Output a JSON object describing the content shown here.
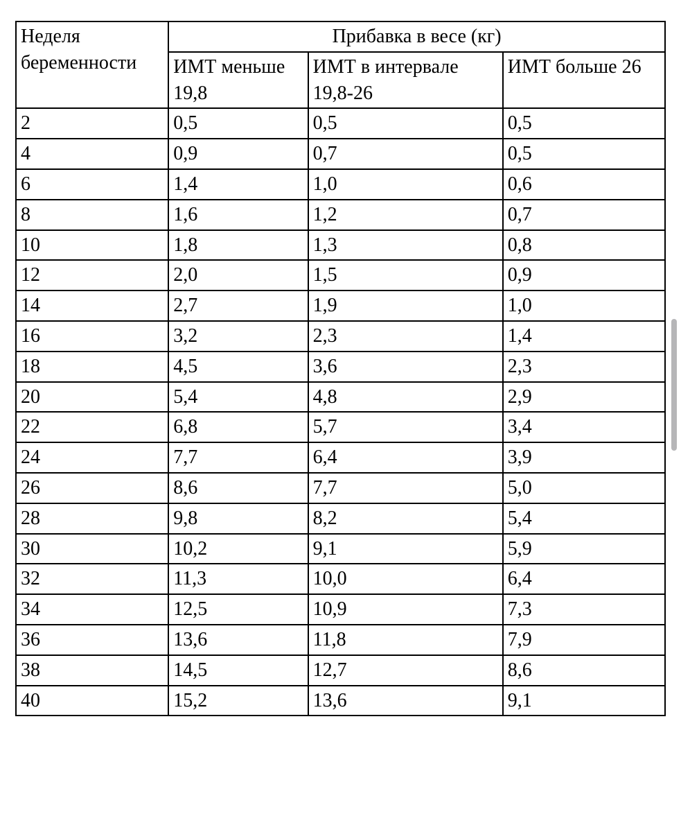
{
  "table": {
    "type": "table",
    "border_color": "#000000",
    "background_color": "#ffffff",
    "text_color": "#000000",
    "font_family": "Times New Roman",
    "font_size_pt": 21,
    "column_widths_pct": [
      23.5,
      21.5,
      30.0,
      25.0
    ],
    "header": {
      "rowhead": "Неделя беременности",
      "spanner": "Прибавка в весе (кг)",
      "subcols": [
        "ИМТ меньше 19,8",
        "ИМТ в интервале 19,8-26",
        "ИМТ больше 26"
      ]
    },
    "rows": [
      [
        "2",
        "0,5",
        "0,5",
        "0,5"
      ],
      [
        "4",
        "0,9",
        "0,7",
        "0,5"
      ],
      [
        "6",
        "1,4",
        "1,0",
        "0,6"
      ],
      [
        "8",
        "1,6",
        "1,2",
        "0,7"
      ],
      [
        "10",
        "1,8",
        "1,3",
        "0,8"
      ],
      [
        "12",
        "2,0",
        "1,5",
        "0,9"
      ],
      [
        "14",
        "2,7",
        "1,9",
        "1,0"
      ],
      [
        "16",
        "3,2",
        "2,3",
        "1,4"
      ],
      [
        "18",
        "4,5",
        "3,6",
        "2,3"
      ],
      [
        "20",
        "5,4",
        "4,8",
        "2,9"
      ],
      [
        "22",
        "6,8",
        "5,7",
        "3,4"
      ],
      [
        "24",
        "7,7",
        "6,4",
        "3,9"
      ],
      [
        "26",
        "8,6",
        "7,7",
        "5,0"
      ],
      [
        "28",
        "9,8",
        "8,2",
        "5,4"
      ],
      [
        "30",
        "10,2",
        "9,1",
        "5,9"
      ],
      [
        "32",
        "11,3",
        "10,0",
        "6,4"
      ],
      [
        "34",
        "12,5",
        "10,9",
        "7,3"
      ],
      [
        "36",
        "13,6",
        "11,8",
        "7,9"
      ],
      [
        "38",
        "14,5",
        "12,7",
        "8,6"
      ],
      [
        "40",
        "15,2",
        "13,6",
        "9,1"
      ]
    ]
  },
  "scrollbar_color": "#b6b6b8"
}
